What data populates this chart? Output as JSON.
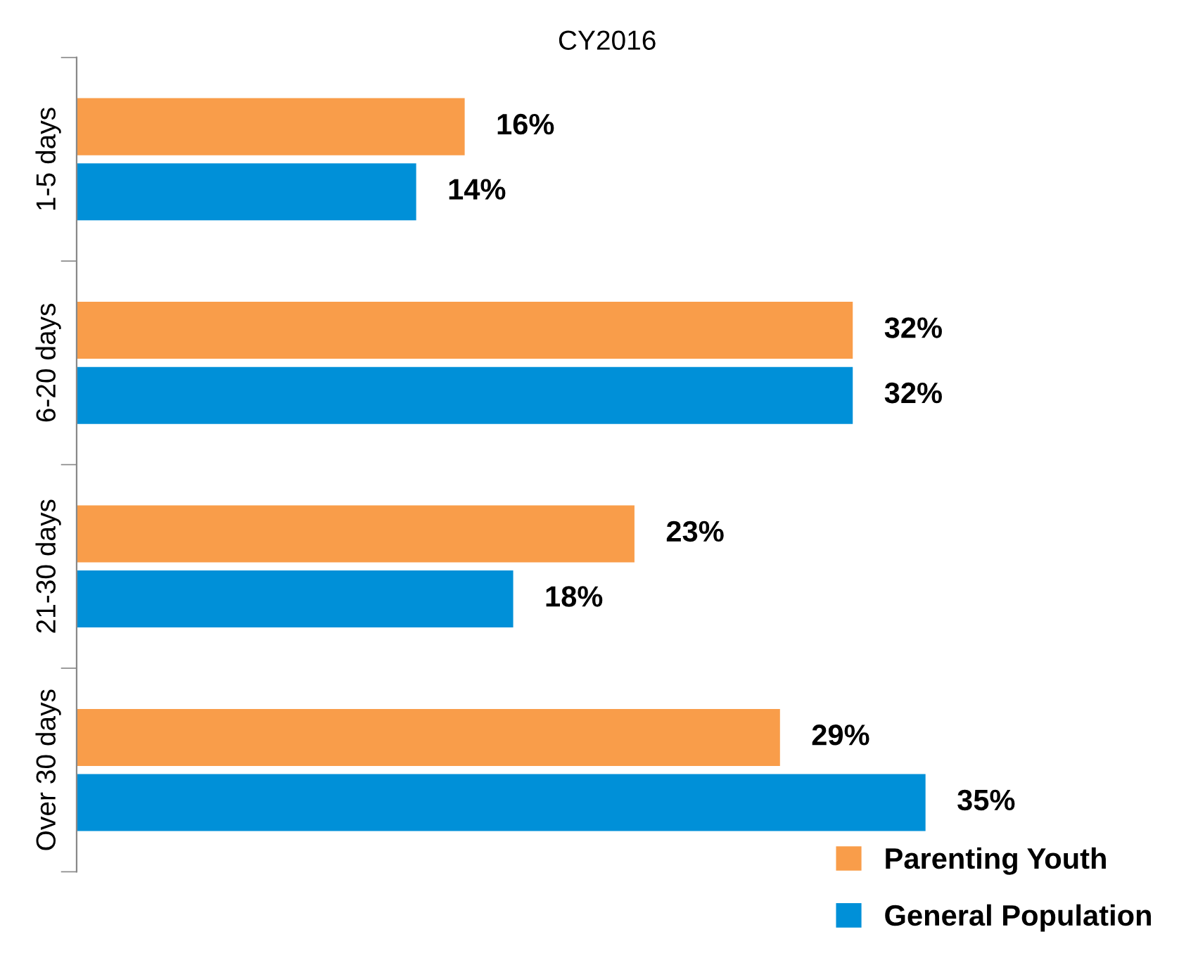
{
  "chart_data": {
    "type": "bar",
    "orientation": "horizontal",
    "title": "CY2016",
    "categories": [
      "1-5 days",
      "6-20 days",
      "21-30 days",
      "Over 30 days"
    ],
    "series": [
      {
        "name": "Parenting Youth",
        "color": "#f99d4a",
        "values": [
          16,
          32,
          23,
          29
        ],
        "value_labels": [
          "16%",
          "32%",
          "23%",
          "29%"
        ]
      },
      {
        "name": "General Population",
        "color": "#0090d8",
        "values": [
          14,
          32,
          18,
          35
        ],
        "value_labels": [
          "14%",
          "32%",
          "18%",
          "35%"
        ]
      }
    ],
    "legend": "bottom right",
    "grid": false
  }
}
